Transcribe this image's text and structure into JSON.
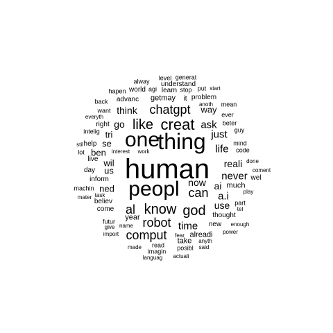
{
  "word_cloud": {
    "ink_color": "#000000",
    "background": "#ffffff",
    "words": [
      "human",
      "peopl",
      "thing",
      "one",
      "creat",
      "like",
      "chatgpt",
      "know",
      "god",
      "al",
      "robot",
      "comput",
      "can",
      "time",
      "ask",
      "just",
      "life",
      "never",
      "reali",
      "a.i",
      "use",
      "now",
      "ai",
      "think",
      "go",
      "way",
      "wil",
      "us",
      "ben",
      "tri",
      "se",
      "ned",
      "year",
      "much",
      "take",
      "alreadi",
      "new",
      "thought",
      "advanc",
      "getmay",
      "it",
      "learn",
      "understand",
      "level",
      "generat",
      "alway",
      "world",
      "agi",
      "hapen",
      "back",
      "stop",
      "put",
      "start",
      "problem",
      "anoth",
      "mean",
      "everyth",
      "want",
      "ever",
      "right",
      "beter",
      "intelig",
      "guy",
      "help",
      "stil",
      "mind",
      "lot",
      "interest",
      "work",
      "code",
      "live",
      "done",
      "day",
      "coment",
      "inform",
      "wel",
      "machin",
      "play",
      "mater",
      "task",
      "part",
      "believ",
      "tel",
      "come",
      "futur",
      "enough",
      "give",
      "name",
      "import",
      "anyth",
      "power",
      "made",
      "read",
      "fear",
      "posibl",
      "said",
      "imagin",
      "languag",
      "actuali"
    ]
  }
}
